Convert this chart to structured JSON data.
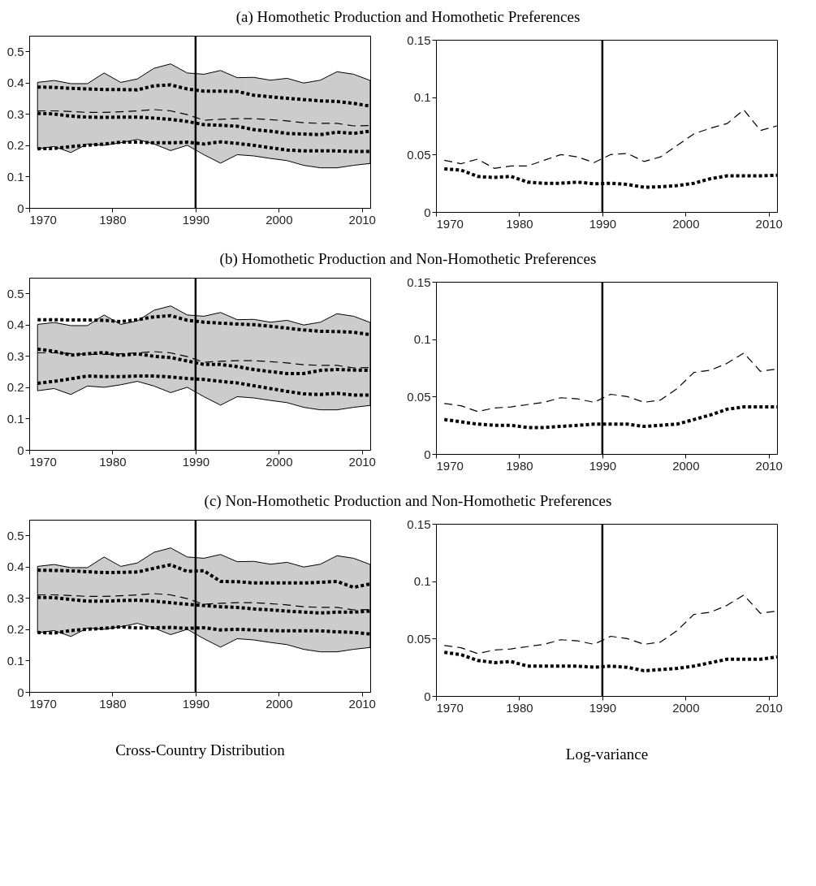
{
  "chart_data": [
    {
      "type": "line",
      "title": "(a) Homothetic Production and Homothetic Preferences",
      "x": [
        1971,
        1973,
        1975,
        1977,
        1979,
        1981,
        1983,
        1985,
        1987,
        1989,
        1991,
        1993,
        1995,
        1997,
        1999,
        2001,
        2003,
        2005,
        2007,
        2009,
        2011
      ],
      "xlim": [
        1970,
        2011
      ],
      "xticks": [
        1970,
        1980,
        1990,
        2000,
        2010
      ],
      "ylim": [
        0,
        0.55
      ],
      "yticks": [
        0,
        0.1,
        0.2,
        0.3,
        0.4,
        0.5
      ],
      "ref_lines": [
        {
          "axis": "x",
          "value": 1990,
          "color": "#000000"
        }
      ],
      "series": [
        {
          "color": "#000000",
          "line_style": "dashed",
          "values": [
            0.31,
            0.31,
            0.308,
            0.305,
            0.305,
            0.307,
            0.31,
            0.314,
            0.31,
            0.298,
            0.28,
            0.283,
            0.285,
            0.285,
            0.282,
            0.278,
            0.272,
            0.27,
            0.27,
            0.262,
            0.263
          ],
          "lower": [
            0.189,
            0.196,
            0.177,
            0.204,
            0.2,
            0.208,
            0.219,
            0.204,
            0.183,
            0.2,
            0.17,
            0.143,
            0.17,
            0.166,
            0.158,
            0.151,
            0.136,
            0.128,
            0.128,
            0.136,
            0.142
          ],
          "upper": [
            0.401,
            0.407,
            0.397,
            0.397,
            0.431,
            0.401,
            0.412,
            0.446,
            0.46,
            0.431,
            0.427,
            0.439,
            0.416,
            0.417,
            0.408,
            0.414,
            0.399,
            0.408,
            0.435,
            0.427,
            0.407
          ]
        },
        {
          "color": "#000000",
          "line_style": "dotted",
          "values": [
            0.386,
            0.385,
            0.382,
            0.38,
            0.378,
            0.378,
            0.377,
            0.39,
            0.393,
            0.38,
            0.373,
            0.373,
            0.372,
            0.36,
            0.355,
            0.35,
            0.346,
            0.342,
            0.34,
            0.334,
            0.325
          ]
        },
        {
          "color": "#000000",
          "line_style": "dotted",
          "values": [
            0.302,
            0.3,
            0.293,
            0.29,
            0.289,
            0.29,
            0.29,
            0.287,
            0.283,
            0.276,
            0.266,
            0.264,
            0.261,
            0.25,
            0.245,
            0.238,
            0.236,
            0.234,
            0.242,
            0.238,
            0.245
          ]
        },
        {
          "color": "#000000",
          "line_style": "dotted",
          "values": [
            0.189,
            0.19,
            0.196,
            0.2,
            0.204,
            0.21,
            0.21,
            0.208,
            0.208,
            0.21,
            0.204,
            0.211,
            0.206,
            0.2,
            0.192,
            0.185,
            0.182,
            0.182,
            0.182,
            0.18,
            0.18
          ]
        }
      ]
    },
    {
      "type": "line",
      "x": [
        1971,
        1973,
        1975,
        1977,
        1979,
        1981,
        1983,
        1985,
        1987,
        1989,
        1991,
        1993,
        1995,
        1997,
        1999,
        2001,
        2003,
        2005,
        2007,
        2009,
        2011
      ],
      "xlim": [
        1970,
        2011
      ],
      "xticks": [
        1970,
        1980,
        1990,
        2000,
        2010
      ],
      "ylim": [
        0,
        0.15
      ],
      "yticks": [
        0,
        0.05,
        0.1,
        0.15
      ],
      "ref_lines": [
        {
          "axis": "x",
          "value": 1990,
          "color": "#000000"
        }
      ],
      "series": [
        {
          "color": "#000000",
          "line_style": "dashed",
          "values": [
            0.045,
            0.042,
            0.046,
            0.038,
            0.04,
            0.04,
            0.045,
            0.05,
            0.048,
            0.043,
            0.05,
            0.051,
            0.044,
            0.048,
            0.058,
            0.068,
            0.073,
            0.077,
            0.089,
            0.071,
            0.075
          ]
        },
        {
          "color": "#000000",
          "line_style": "dotted",
          "values": [
            0.0375,
            0.0365,
            0.031,
            0.03,
            0.031,
            0.026,
            0.025,
            0.025,
            0.026,
            0.0245,
            0.025,
            0.024,
            0.0215,
            0.022,
            0.023,
            0.025,
            0.029,
            0.0315,
            0.0315,
            0.0315,
            0.032
          ]
        }
      ]
    },
    {
      "type": "line",
      "title": "(b) Homothetic Production and Non-Homothetic Preferences",
      "x": [
        1971,
        1973,
        1975,
        1977,
        1979,
        1981,
        1983,
        1985,
        1987,
        1989,
        1991,
        1993,
        1995,
        1997,
        1999,
        2001,
        2003,
        2005,
        2007,
        2009,
        2011
      ],
      "xlim": [
        1970,
        2011
      ],
      "xticks": [
        1970,
        1980,
        1990,
        2000,
        2010
      ],
      "ylim": [
        0,
        0.55
      ],
      "yticks": [
        0,
        0.1,
        0.2,
        0.3,
        0.4,
        0.5
      ],
      "ref_lines": [
        {
          "axis": "x",
          "value": 1990,
          "color": "#000000"
        }
      ],
      "series": [
        {
          "color": "#000000",
          "line_style": "dashed",
          "values": [
            0.31,
            0.31,
            0.308,
            0.305,
            0.305,
            0.307,
            0.31,
            0.314,
            0.31,
            0.298,
            0.28,
            0.283,
            0.285,
            0.285,
            0.282,
            0.278,
            0.272,
            0.27,
            0.27,
            0.262,
            0.263
          ],
          "lower": [
            0.189,
            0.196,
            0.177,
            0.204,
            0.2,
            0.208,
            0.219,
            0.204,
            0.183,
            0.2,
            0.17,
            0.143,
            0.17,
            0.166,
            0.158,
            0.151,
            0.136,
            0.128,
            0.128,
            0.136,
            0.142
          ],
          "upper": [
            0.401,
            0.407,
            0.397,
            0.397,
            0.431,
            0.401,
            0.412,
            0.446,
            0.46,
            0.431,
            0.427,
            0.439,
            0.416,
            0.417,
            0.408,
            0.414,
            0.399,
            0.408,
            0.435,
            0.427,
            0.407
          ]
        },
        {
          "color": "#000000",
          "line_style": "dotted",
          "values": [
            0.416,
            0.416,
            0.415,
            0.415,
            0.414,
            0.41,
            0.416,
            0.425,
            0.429,
            0.414,
            0.408,
            0.405,
            0.402,
            0.4,
            0.395,
            0.389,
            0.383,
            0.379,
            0.378,
            0.376,
            0.368
          ]
        },
        {
          "color": "#000000",
          "line_style": "dotted",
          "values": [
            0.322,
            0.315,
            0.303,
            0.307,
            0.311,
            0.302,
            0.307,
            0.299,
            0.295,
            0.284,
            0.273,
            0.273,
            0.266,
            0.257,
            0.25,
            0.244,
            0.244,
            0.254,
            0.257,
            0.255,
            0.254
          ]
        },
        {
          "color": "#000000",
          "line_style": "dotted",
          "values": [
            0.213,
            0.219,
            0.227,
            0.236,
            0.234,
            0.234,
            0.236,
            0.236,
            0.233,
            0.228,
            0.225,
            0.219,
            0.214,
            0.205,
            0.196,
            0.187,
            0.179,
            0.177,
            0.181,
            0.175,
            0.175
          ]
        }
      ]
    },
    {
      "type": "line",
      "x": [
        1971,
        1973,
        1975,
        1977,
        1979,
        1981,
        1983,
        1985,
        1987,
        1989,
        1991,
        1993,
        1995,
        1997,
        1999,
        2001,
        2003,
        2005,
        2007,
        2009,
        2011
      ],
      "xlim": [
        1970,
        2011
      ],
      "xticks": [
        1970,
        1980,
        1990,
        2000,
        2010
      ],
      "ylim": [
        0,
        0.15
      ],
      "yticks": [
        0,
        0.05,
        0.1,
        0.15
      ],
      "ref_lines": [
        {
          "axis": "x",
          "value": 1990,
          "color": "#000000"
        }
      ],
      "series": [
        {
          "color": "#000000",
          "line_style": "dashed",
          "values": [
            0.044,
            0.042,
            0.037,
            0.04,
            0.041,
            0.043,
            0.045,
            0.049,
            0.048,
            0.045,
            0.052,
            0.05,
            0.045,
            0.047,
            0.057,
            0.071,
            0.073,
            0.079,
            0.088,
            0.072,
            0.074
          ]
        },
        {
          "color": "#000000",
          "line_style": "dotted",
          "values": [
            0.03,
            0.028,
            0.026,
            0.025,
            0.025,
            0.023,
            0.023,
            0.024,
            0.025,
            0.026,
            0.026,
            0.026,
            0.024,
            0.025,
            0.026,
            0.03,
            0.034,
            0.039,
            0.041,
            0.041,
            0.041
          ]
        }
      ]
    },
    {
      "type": "line",
      "title": "(c) Non-Homothetic Production and Non-Homothetic Preferences",
      "xlabel": "Cross-Country Distribution",
      "x": [
        1971,
        1973,
        1975,
        1977,
        1979,
        1981,
        1983,
        1985,
        1987,
        1989,
        1991,
        1993,
        1995,
        1997,
        1999,
        2001,
        2003,
        2005,
        2007,
        2009,
        2011
      ],
      "xlim": [
        1970,
        2011
      ],
      "xticks": [
        1970,
        1980,
        1990,
        2000,
        2010
      ],
      "ylim": [
        0,
        0.55
      ],
      "yticks": [
        0,
        0.1,
        0.2,
        0.3,
        0.4,
        0.5
      ],
      "ref_lines": [
        {
          "axis": "x",
          "value": 1990,
          "color": "#000000"
        }
      ],
      "series": [
        {
          "color": "#000000",
          "line_style": "dashed",
          "values": [
            0.31,
            0.31,
            0.308,
            0.305,
            0.305,
            0.307,
            0.31,
            0.314,
            0.31,
            0.298,
            0.28,
            0.283,
            0.285,
            0.285,
            0.282,
            0.278,
            0.272,
            0.27,
            0.27,
            0.262,
            0.263
          ],
          "lower": [
            0.189,
            0.196,
            0.177,
            0.204,
            0.2,
            0.208,
            0.219,
            0.204,
            0.183,
            0.2,
            0.17,
            0.143,
            0.17,
            0.166,
            0.158,
            0.151,
            0.136,
            0.128,
            0.128,
            0.136,
            0.142
          ],
          "upper": [
            0.401,
            0.407,
            0.397,
            0.397,
            0.431,
            0.401,
            0.412,
            0.446,
            0.46,
            0.431,
            0.427,
            0.439,
            0.416,
            0.417,
            0.408,
            0.414,
            0.399,
            0.408,
            0.435,
            0.427,
            0.407
          ]
        },
        {
          "color": "#000000",
          "line_style": "dotted",
          "values": [
            0.389,
            0.388,
            0.387,
            0.384,
            0.381,
            0.382,
            0.383,
            0.395,
            0.406,
            0.385,
            0.387,
            0.353,
            0.352,
            0.348,
            0.348,
            0.348,
            0.348,
            0.35,
            0.353,
            0.334,
            0.345
          ]
        },
        {
          "color": "#000000",
          "line_style": "dotted",
          "values": [
            0.302,
            0.301,
            0.295,
            0.29,
            0.29,
            0.292,
            0.293,
            0.29,
            0.285,
            0.28,
            0.276,
            0.272,
            0.27,
            0.265,
            0.262,
            0.258,
            0.255,
            0.252,
            0.255,
            0.255,
            0.258
          ]
        },
        {
          "color": "#000000",
          "line_style": "dotted",
          "values": [
            0.19,
            0.188,
            0.196,
            0.2,
            0.203,
            0.208,
            0.204,
            0.205,
            0.206,
            0.203,
            0.205,
            0.198,
            0.2,
            0.198,
            0.196,
            0.195,
            0.195,
            0.195,
            0.192,
            0.19,
            0.185
          ]
        }
      ]
    },
    {
      "type": "line",
      "xlabel": "Log-variance",
      "x": [
        1971,
        1973,
        1975,
        1977,
        1979,
        1981,
        1983,
        1985,
        1987,
        1989,
        1991,
        1993,
        1995,
        1997,
        1999,
        2001,
        2003,
        2005,
        2007,
        2009,
        2011
      ],
      "xlim": [
        1970,
        2011
      ],
      "xticks": [
        1970,
        1980,
        1990,
        2000,
        2010
      ],
      "ylim": [
        0,
        0.15
      ],
      "yticks": [
        0,
        0.05,
        0.1,
        0.15
      ],
      "ref_lines": [
        {
          "axis": "x",
          "value": 1990,
          "color": "#000000"
        }
      ],
      "series": [
        {
          "color": "#000000",
          "line_style": "dashed",
          "values": [
            0.044,
            0.042,
            0.037,
            0.04,
            0.041,
            0.043,
            0.045,
            0.049,
            0.048,
            0.045,
            0.052,
            0.05,
            0.045,
            0.047,
            0.057,
            0.071,
            0.073,
            0.079,
            0.088,
            0.072,
            0.074
          ]
        },
        {
          "color": "#000000",
          "line_style": "dotted",
          "values": [
            0.038,
            0.036,
            0.031,
            0.029,
            0.03,
            0.026,
            0.026,
            0.026,
            0.026,
            0.025,
            0.026,
            0.025,
            0.022,
            0.023,
            0.024,
            0.026,
            0.029,
            0.032,
            0.032,
            0.032,
            0.034
          ]
        }
      ]
    }
  ]
}
